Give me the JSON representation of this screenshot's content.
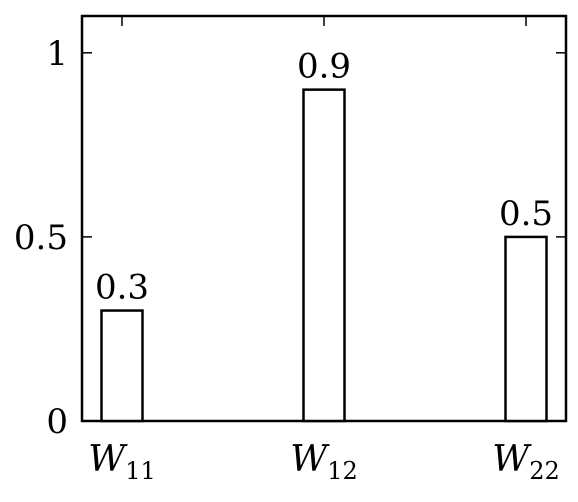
{
  "chart_data": {
    "type": "bar",
    "title": "",
    "xlabel": "",
    "ylabel": "",
    "categories": [
      {
        "base": "W",
        "sub": "11"
      },
      {
        "base": "W",
        "sub": "12"
      },
      {
        "base": "W",
        "sub": "22"
      }
    ],
    "values": [
      0.3,
      0.9,
      0.5
    ],
    "data_labels": [
      "0.3",
      "0.9",
      "0.5"
    ],
    "ylim": [
      0,
      1.1
    ],
    "yticks": [
      0,
      0.5,
      1
    ],
    "ytick_labels": [
      "0",
      "0.5",
      "1"
    ],
    "grid": false,
    "bar_fill": "#ffffff",
    "bar_stroke": "#000000"
  }
}
